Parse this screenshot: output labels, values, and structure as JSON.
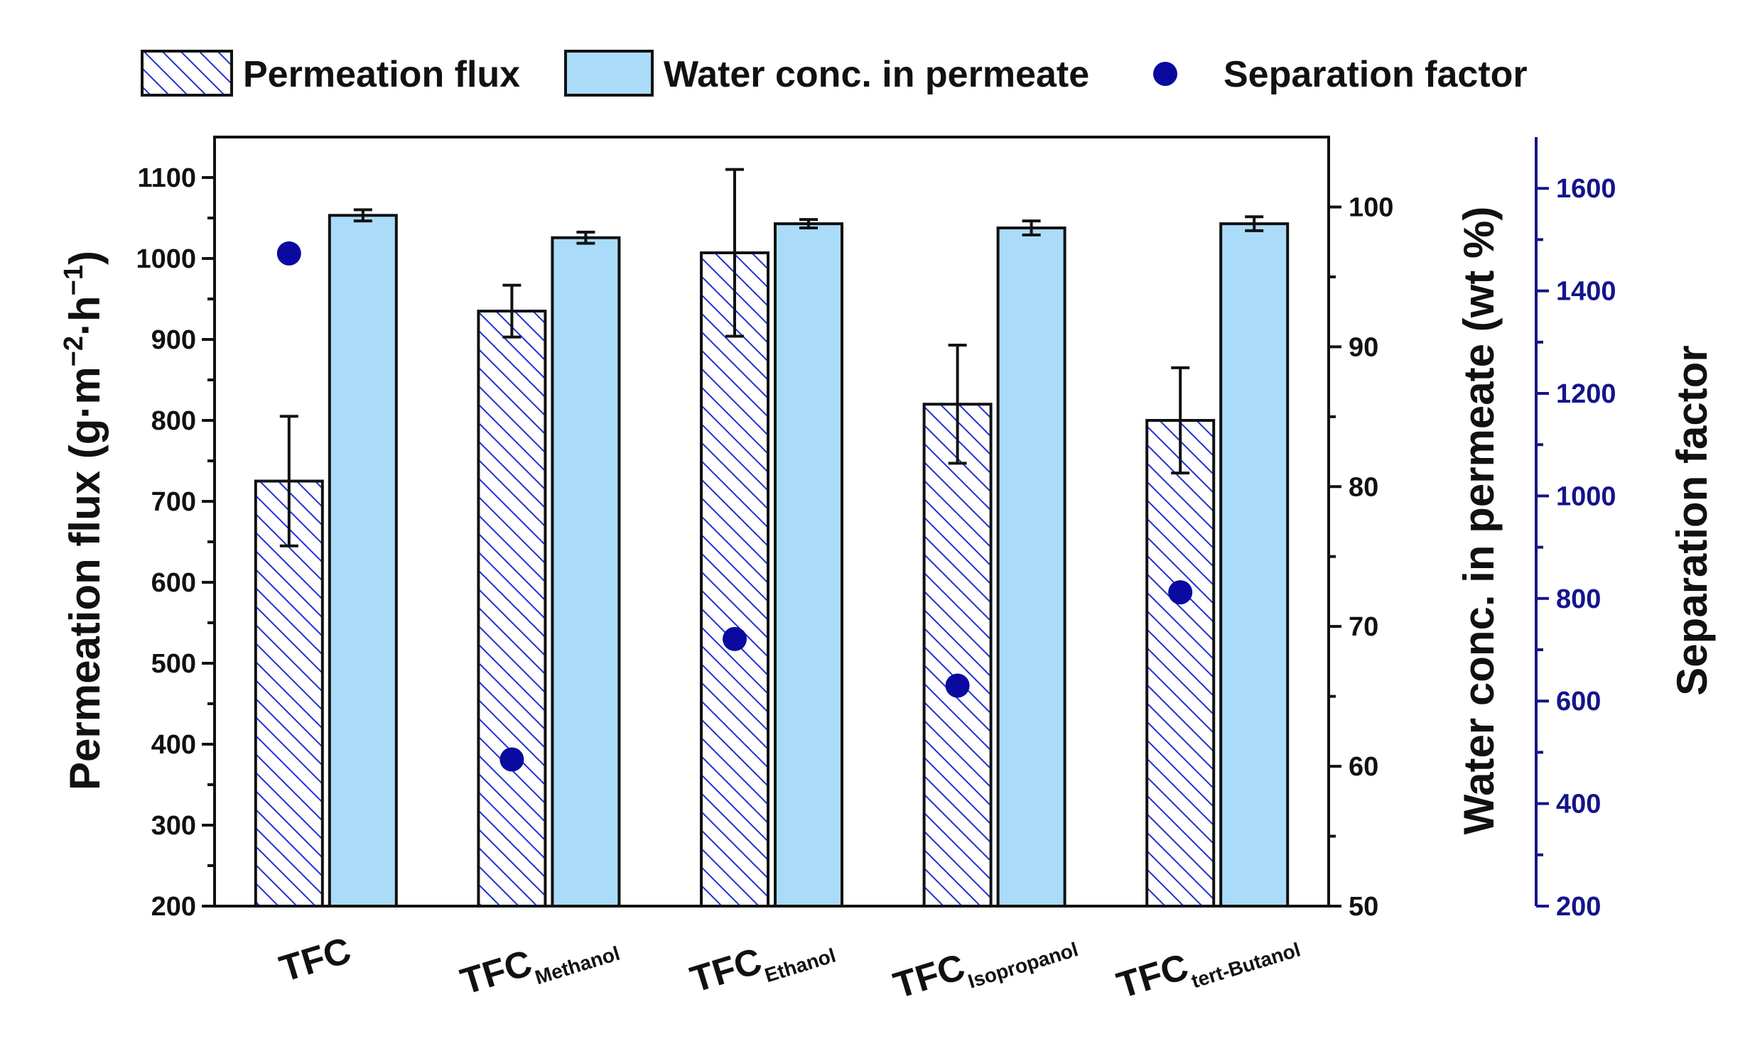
{
  "chart_data": {
    "type": "bar",
    "categories": [
      {
        "main": "TFC",
        "sub": ""
      },
      {
        "main": "TFC",
        "sub": "Methanol"
      },
      {
        "main": "TFC",
        "sub": "Ethanol"
      },
      {
        "main": "TFC",
        "sub": "Isopropanol"
      },
      {
        "main": "TFC",
        "sub": "tert-Butanol"
      }
    ],
    "series": [
      {
        "name": "Permeation flux",
        "axis": "left",
        "style": "hatched",
        "values": [
          725,
          935,
          1007,
          820,
          800
        ],
        "errors": [
          80,
          32,
          103,
          73,
          65
        ]
      },
      {
        "name": "Water conc. in permeate",
        "axis": "right",
        "style": "filled",
        "values": [
          99.4,
          97.8,
          98.8,
          98.5,
          98.8
        ],
        "errors": [
          0.4,
          0.4,
          0.3,
          0.5,
          0.5
        ]
      },
      {
        "name": "Separation factor",
        "axis": "sep",
        "style": "marker",
        "values": [
          1473,
          486,
          721,
          630,
          812
        ]
      }
    ],
    "axes": {
      "left": {
        "title_parts": [
          "Permeation flux (g·m",
          "−2",
          "·h",
          "−1",
          ")"
        ],
        "range": [
          200,
          1150
        ],
        "ticks": [
          200,
          300,
          400,
          500,
          600,
          700,
          800,
          900,
          1000,
          1100
        ]
      },
      "right": {
        "title": "Water conc. in permeate (wt %)",
        "range": [
          50,
          105
        ],
        "ticks": [
          50,
          60,
          70,
          80,
          90,
          100
        ]
      },
      "sep": {
        "title": "Separation factor",
        "range": [
          200,
          1700
        ],
        "ticks": [
          200,
          400,
          600,
          800,
          1000,
          1200,
          1400,
          1600
        ]
      }
    },
    "legend": [
      {
        "label": "Permeation flux",
        "swatch": "hatched"
      },
      {
        "label": "Water conc. in permeate",
        "swatch": "filled"
      },
      {
        "label": "Separation factor",
        "swatch": "marker"
      }
    ],
    "legend_position": "top",
    "colors": {
      "hatch": "#1f2fd4",
      "fill": "#aadcfa",
      "marker": "#0a0aa0",
      "sep_axis": "#14148c",
      "ink": "#111111"
    }
  }
}
